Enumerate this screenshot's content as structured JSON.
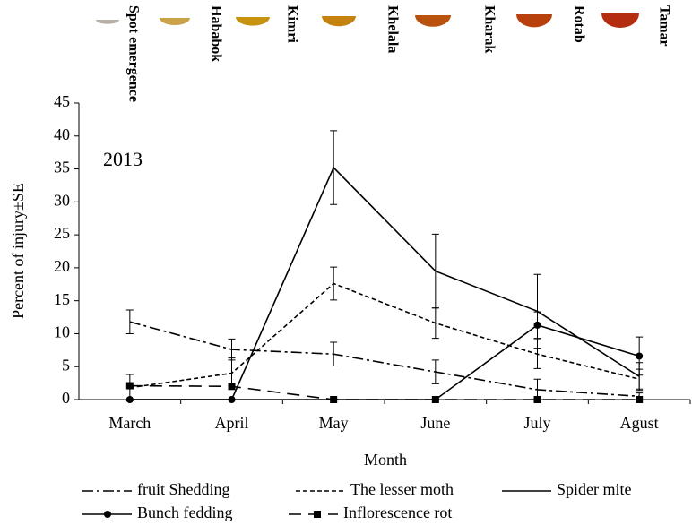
{
  "chart_data": {
    "type": "line",
    "annotation": "2013",
    "y_label": "Percent of injury±SE",
    "x_label": "Month",
    "stages": [
      {
        "label": "Spot emergence",
        "color": "#b8b0a6"
      },
      {
        "label": "Hababok",
        "color": "#c9a24a"
      },
      {
        "label": "Kimri",
        "color": "#c7920e"
      },
      {
        "label": "Khelala",
        "color": "#c6820f"
      },
      {
        "label": "Kharak",
        "color": "#b8520e"
      },
      {
        "label": "Rotab",
        "color": "#b8400c"
      },
      {
        "label": "Tamar",
        "color": "#b52d10"
      }
    ],
    "categories": [
      "March",
      "April",
      "May",
      "June",
      "July",
      "Agust"
    ],
    "series": [
      {
        "name": "fruit Shedding",
        "color": "#000000",
        "style": "dash-dot",
        "marker": null,
        "values": [
          11.8,
          7.6,
          6.9,
          4.2,
          1.5,
          0.5
        ],
        "errors": [
          1.8,
          1.6,
          1.8,
          1.8,
          1.6,
          0.5
        ]
      },
      {
        "name": "The lesser moth",
        "color": "#000000",
        "style": "dashed",
        "marker": null,
        "values": [
          1.8,
          4,
          17.6,
          11.6,
          6.9,
          3.1
        ],
        "errors": [
          2,
          2.3,
          2.5,
          2.3,
          2.2,
          1.5
        ]
      },
      {
        "name": "Spider mite",
        "color": "#000000",
        "style": "solid",
        "marker": null,
        "values": [
          0,
          0,
          35.2,
          19.5,
          13.4,
          3.5
        ],
        "errors": [
          null,
          null,
          5.6,
          5.6,
          5.6,
          2.1
        ]
      },
      {
        "name": "Bunch fedding",
        "color": "#000000",
        "style": "solid",
        "marker": "circle",
        "values": [
          0,
          0,
          0,
          0,
          11.3,
          6.6
        ],
        "errors": [
          null,
          null,
          null,
          null,
          2,
          2.9
        ]
      },
      {
        "name": "Inflorescence rot",
        "color": "#000000",
        "style": "long-dash",
        "marker": "square",
        "values": [
          2.1,
          2,
          0,
          0,
          0,
          0
        ],
        "errors": [
          null,
          null,
          null,
          null,
          null,
          null
        ]
      }
    ],
    "ylim": [
      0,
      45
    ],
    "yticks": [
      0,
      5,
      10,
      15,
      20,
      25,
      30,
      35,
      40,
      45
    ],
    "grid": false
  }
}
